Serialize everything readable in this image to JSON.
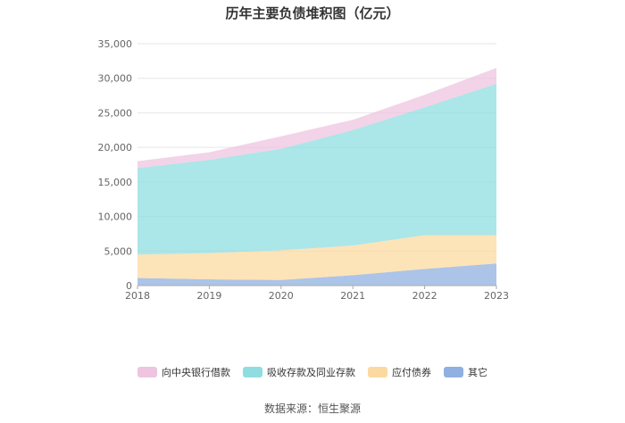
{
  "chart_data": {
    "type": "area",
    "stacked": true,
    "title": "历年主要负债堆积图（亿元）",
    "x": [
      "2018",
      "2019",
      "2020",
      "2021",
      "2022",
      "2023"
    ],
    "y_ticks": [
      "0",
      "5,000",
      "10,000",
      "15,000",
      "20,000",
      "25,000",
      "30,000",
      "35,000"
    ],
    "ylim": [
      0,
      35000
    ],
    "grid": true,
    "legend_position": "bottom",
    "series": [
      {
        "name": "其它",
        "color": "#8fb0e0",
        "values": [
          1100,
          900,
          800,
          1500,
          2400,
          3200
        ]
      },
      {
        "name": "应付债券",
        "color": "#fcd9a0",
        "values": [
          3400,
          3800,
          4300,
          4300,
          4900,
          4100
        ]
      },
      {
        "name": "吸收存款及同业存款",
        "color": "#8fdde0",
        "values": [
          12500,
          13500,
          14700,
          16700,
          18500,
          21900
        ]
      },
      {
        "name": "向中央银行借款",
        "color": "#eec4e0",
        "values": [
          1000,
          1100,
          1800,
          1500,
          1800,
          2300
        ]
      }
    ]
  },
  "legend_order": [
    "向中央银行借款",
    "吸收存款及同业存款",
    "应付债券",
    "其它"
  ],
  "source": "数据来源：恒生聚源"
}
